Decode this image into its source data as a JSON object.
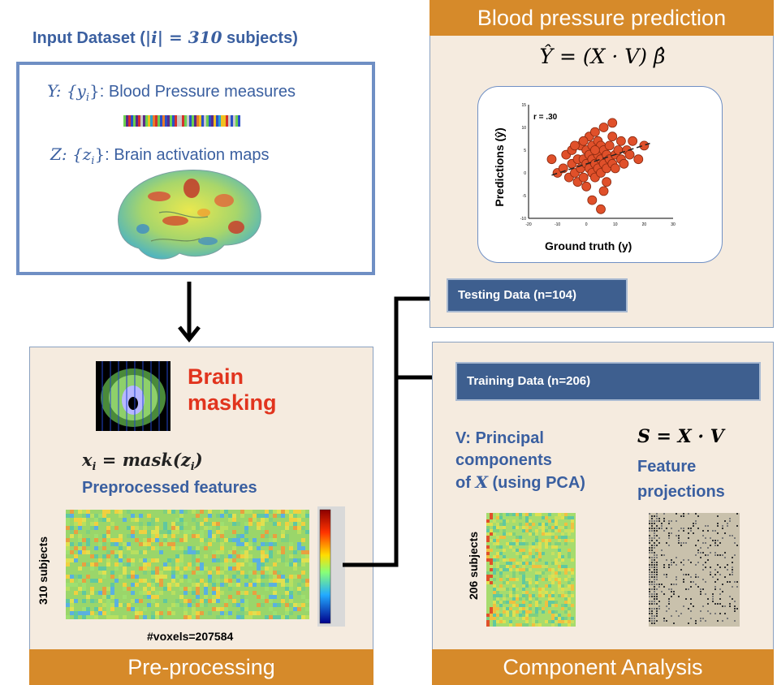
{
  "input": {
    "title_prefix": "Input Dataset (",
    "title_math": "|i| = 310",
    "title_suffix": " subjects)",
    "y_math": "Y: {y",
    "y_sub": "i",
    "y_close": "}",
    "y_label": ": Blood Pressure measures",
    "z_math": "Z: {z",
    "z_sub": "i",
    "z_close": "}",
    "z_label": ": Brain activation maps"
  },
  "preprocessing": {
    "brain_label_1": "Brain",
    "brain_label_2": "masking",
    "formula": "x",
    "formula_sub": "i",
    "formula_rest": " = mask(z",
    "formula_sub2": "i",
    "formula_end": ")",
    "features_label": "Preprocessed features",
    "y_axis": "310 subjects",
    "x_axis": "#voxels=207584",
    "footer": "Pre-processing"
  },
  "prediction": {
    "header": "Blood pressure prediction",
    "formula": "Ŷ = (X · V) β̂",
    "testing": "Testing Data (n=104)",
    "chart_r": "r = .30",
    "chart_xlabel": "Ground truth (y)",
    "chart_ylabel": "Predictions (ŷ)"
  },
  "component": {
    "training": "Training Data (n=206)",
    "v_line1": "V: Principal",
    "v_line2": "components",
    "v_line3_pre": "of ",
    "v_line3_x": "X",
    "v_line3_post": " (using PCA)",
    "s_formula": "S = X · V",
    "s_line1": "Feature",
    "s_line2": "projections",
    "y_axis": "206 subjects",
    "footer": "Component Analysis"
  },
  "colors": {
    "accent_orange": "#d68a2a",
    "panel_bg": "#f5ebdf",
    "navy": "#3e5f8f",
    "text_blue": "#3a5fa0",
    "red": "#e1341e"
  },
  "chart_data": {
    "type": "scatter",
    "xlabel": "Ground truth (y)",
    "ylabel": "Predictions (ŷ)",
    "xlim": [
      -20,
      30
    ],
    "ylim": [
      -10,
      15
    ],
    "xticks": [
      -20,
      -10,
      0,
      10,
      20,
      30
    ],
    "yticks": [
      -10,
      -5,
      0,
      5,
      10,
      15
    ],
    "annotation": "r = .30",
    "points": [
      [
        -12,
        3
      ],
      [
        -10,
        0
      ],
      [
        -8,
        1
      ],
      [
        -7,
        4
      ],
      [
        -6,
        -1
      ],
      [
        -5,
        2
      ],
      [
        -5,
        5
      ],
      [
        -4,
        0
      ],
      [
        -3,
        3
      ],
      [
        -3,
        -2
      ],
      [
        -2,
        1
      ],
      [
        -2,
        6
      ],
      [
        -1,
        3
      ],
      [
        -1,
        -1
      ],
      [
        0,
        2
      ],
      [
        0,
        5
      ],
      [
        0,
        -3
      ],
      [
        1,
        1
      ],
      [
        1,
        4
      ],
      [
        1,
        8
      ],
      [
        2,
        0
      ],
      [
        2,
        3
      ],
      [
        2,
        6
      ],
      [
        3,
        2
      ],
      [
        3,
        -1
      ],
      [
        3,
        9
      ],
      [
        4,
        4
      ],
      [
        4,
        1
      ],
      [
        4,
        7
      ],
      [
        5,
        3
      ],
      [
        5,
        0
      ],
      [
        5,
        6
      ],
      [
        6,
        2
      ],
      [
        6,
        5
      ],
      [
        6,
        10
      ],
      [
        7,
        1
      ],
      [
        7,
        4
      ],
      [
        7,
        -2
      ],
      [
        8,
        3
      ],
      [
        8,
        6
      ],
      [
        9,
        2
      ],
      [
        9,
        8
      ],
      [
        10,
        4
      ],
      [
        10,
        1
      ],
      [
        11,
        5
      ],
      [
        12,
        3
      ],
      [
        12,
        7
      ],
      [
        13,
        2
      ],
      [
        14,
        5
      ],
      [
        15,
        4
      ],
      [
        16,
        7
      ],
      [
        18,
        3
      ],
      [
        20,
        6
      ],
      [
        -1,
        7
      ],
      [
        3,
        5
      ],
      [
        6,
        -4
      ],
      [
        2,
        -6
      ],
      [
        5,
        -8
      ],
      [
        9,
        11
      ],
      [
        -4,
        6
      ]
    ],
    "regression_line": [
      [
        -12,
        -0.5
      ],
      [
        22,
        6.5
      ]
    ]
  }
}
